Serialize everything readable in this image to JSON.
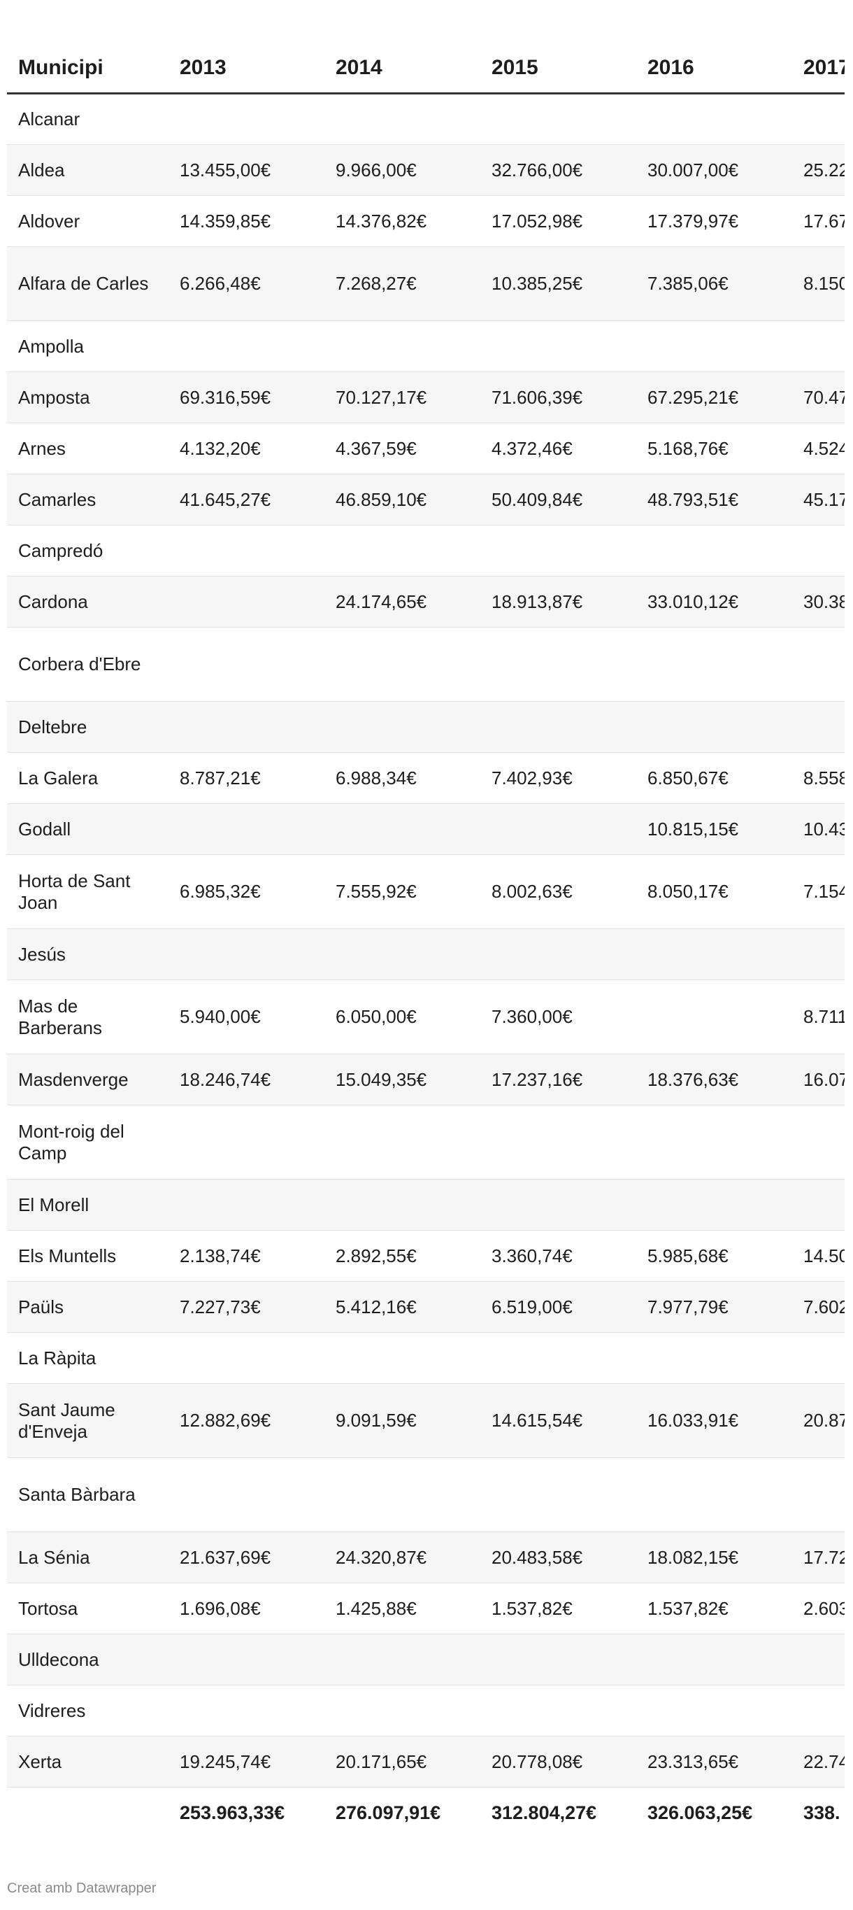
{
  "chart_data": {
    "type": "table",
    "columns": [
      "Municipi",
      "2013",
      "2014",
      "2015",
      "2016",
      "2017"
    ],
    "rows": [
      {
        "municipi": "Alcanar",
        "values": [
          "",
          "",
          "",
          "",
          ""
        ]
      },
      {
        "municipi": "Aldea",
        "values": [
          "13.455,00€",
          "9.966,00€",
          "32.766,00€",
          "30.007,00€",
          "25.22"
        ]
      },
      {
        "municipi": "Aldover",
        "values": [
          "14.359,85€",
          "14.376,82€",
          "17.052,98€",
          "17.379,97€",
          "17.67"
        ]
      },
      {
        "municipi": "Alfara de Carles",
        "values": [
          "6.266,48€",
          "7.268,27€",
          "10.385,25€",
          "7.385,06€",
          "8.150"
        ]
      },
      {
        "municipi": "Ampolla",
        "values": [
          "",
          "",
          "",
          "",
          ""
        ]
      },
      {
        "municipi": "Amposta",
        "values": [
          "69.316,59€",
          "70.127,17€",
          "71.606,39€",
          "67.295,21€",
          "70.47"
        ]
      },
      {
        "municipi": "Arnes",
        "values": [
          "4.132,20€",
          "4.367,59€",
          "4.372,46€",
          "5.168,76€",
          "4.524"
        ]
      },
      {
        "municipi": "Camarles",
        "values": [
          "41.645,27€",
          "46.859,10€",
          "50.409,84€",
          "48.793,51€",
          "45.17"
        ]
      },
      {
        "municipi": "Campredó",
        "values": [
          "",
          "",
          "",
          "",
          ""
        ]
      },
      {
        "municipi": "Cardona",
        "values": [
          "",
          "24.174,65€",
          "18.913,87€",
          "33.010,12€",
          "30.38"
        ]
      },
      {
        "municipi": "Corbera d'Ebre",
        "values": [
          "",
          "",
          "",
          "",
          ""
        ]
      },
      {
        "municipi": "Deltebre",
        "values": [
          "",
          "",
          "",
          "",
          ""
        ]
      },
      {
        "municipi": "La Galera",
        "values": [
          "8.787,21€",
          "6.988,34€",
          "7.402,93€",
          "6.850,67€",
          "8.558"
        ]
      },
      {
        "municipi": "Godall",
        "values": [
          "",
          "",
          "",
          "10.815,15€",
          "10.43"
        ]
      },
      {
        "municipi": "Horta de Sant Joan",
        "values": [
          "6.985,32€",
          "7.555,92€",
          "8.002,63€",
          "8.050,17€",
          "7.154"
        ]
      },
      {
        "municipi": "Jesús",
        "values": [
          "",
          "",
          "",
          "",
          ""
        ]
      },
      {
        "municipi": "Mas de Barberans",
        "values": [
          "5.940,00€",
          "6.050,00€",
          "7.360,00€",
          "",
          "8.711"
        ]
      },
      {
        "municipi": "Masdenverge",
        "values": [
          "18.246,74€",
          "15.049,35€",
          "17.237,16€",
          "18.376,63€",
          "16.07"
        ]
      },
      {
        "municipi": "Mont-roig del Camp",
        "values": [
          "",
          "",
          "",
          "",
          ""
        ]
      },
      {
        "municipi": "El Morell",
        "values": [
          "",
          "",
          "",
          "",
          ""
        ]
      },
      {
        "municipi": "Els Muntells",
        "values": [
          "2.138,74€",
          "2.892,55€",
          "3.360,74€",
          "5.985,68€",
          "14.50"
        ]
      },
      {
        "municipi": "Paüls",
        "values": [
          "7.227,73€",
          "5.412,16€",
          "6.519,00€",
          "7.977,79€",
          "7.602"
        ]
      },
      {
        "municipi": "La Ràpita",
        "values": [
          "",
          "",
          "",
          "",
          ""
        ]
      },
      {
        "municipi": "Sant Jaume d'Enveja",
        "values": [
          "12.882,69€",
          "9.091,59€",
          "14.615,54€",
          "16.033,91€",
          "20.87"
        ]
      },
      {
        "municipi": "Santa Bàrbara",
        "values": [
          "",
          "",
          "",
          "",
          ""
        ]
      },
      {
        "municipi": "La Sénia",
        "values": [
          "21.637,69€",
          "24.320,87€",
          "20.483,58€",
          "18.082,15€",
          "17.72"
        ]
      },
      {
        "municipi": "Tortosa",
        "values": [
          "1.696,08€",
          "1.425,88€",
          "1.537,82€",
          "1.537,82€",
          "2.603"
        ]
      },
      {
        "municipi": "Ulldecona",
        "values": [
          "",
          "",
          "",
          "",
          ""
        ]
      },
      {
        "municipi": "Vidreres",
        "values": [
          "",
          "",
          "",
          "",
          ""
        ]
      },
      {
        "municipi": "Xerta",
        "values": [
          "19.245,74€",
          "20.171,65€",
          "20.778,08€",
          "23.313,65€",
          "22.74"
        ]
      }
    ],
    "totals": [
      "253.963,33€",
      "276.097,91€",
      "312.804,27€",
      "326.063,25€",
      "338."
    ]
  },
  "credit": "Creat amb Datawrapper"
}
